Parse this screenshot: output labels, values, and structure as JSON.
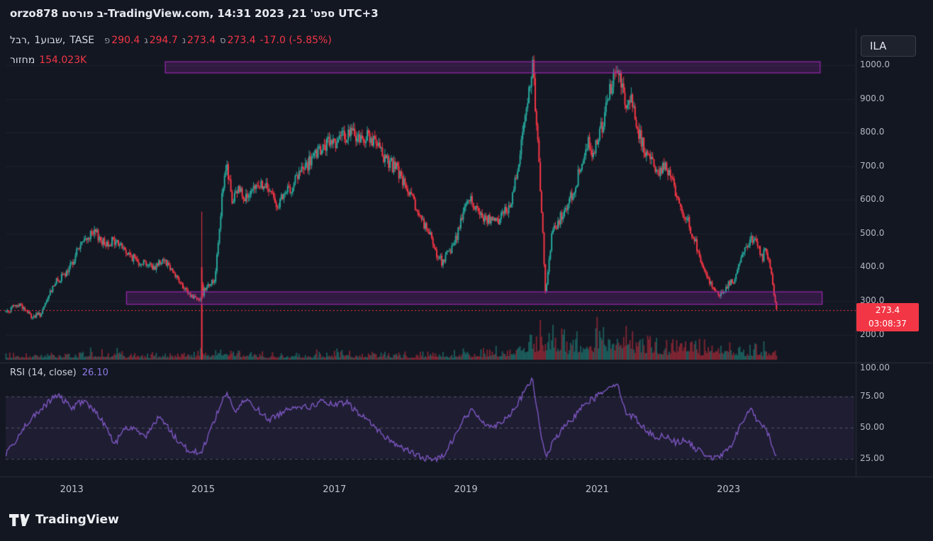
{
  "header": {
    "segments": [
      "orzo878",
      "פורסם",
      "ב-TradingView.com,",
      "14:31",
      "2023",
      ",21",
      "ספט'",
      "UTC+3"
    ]
  },
  "legend": {
    "symbol_segments": [
      "רבל,",
      "1שבוע,",
      "TASE"
    ],
    "ohlc": [
      {
        "label": "פ",
        "value": "290.4"
      },
      {
        "label": "ג",
        "value": "294.7"
      },
      {
        "label": "נ",
        "value": "273.4"
      },
      {
        "label": "ס",
        "value": "273.4"
      }
    ],
    "change": "-17.0 (-5.85%)",
    "volume_label": "מחזור",
    "volume_value": "154.023K"
  },
  "symbol_badge": "ILA",
  "price_label": {
    "value": "273.4",
    "countdown": "03:08:37"
  },
  "price_axis": {
    "ticks": [
      {
        "label": "1000.0",
        "price": 1000
      },
      {
        "label": "900.0",
        "price": 900
      },
      {
        "label": "800.0",
        "price": 800
      },
      {
        "label": "700.0",
        "price": 700
      },
      {
        "label": "600.0",
        "price": 600
      },
      {
        "label": "500.0",
        "price": 500
      },
      {
        "label": "400.0",
        "price": 400
      },
      {
        "label": "300.0",
        "price": 300
      },
      {
        "label": "200.0",
        "price": 200
      },
      {
        "label": "100.00",
        "price": 100
      }
    ]
  },
  "rsi_pane": {
    "title": "RSI (14, close)",
    "value": "26.10",
    "ticks": [
      {
        "label": "75.00",
        "value": 75
      },
      {
        "label": "50.00",
        "value": 50
      },
      {
        "label": "25.00",
        "value": 25
      }
    ],
    "band": [
      25,
      75
    ],
    "levels": [
      75,
      50,
      25
    ]
  },
  "time_axis": {
    "labels": [
      {
        "text": "2013",
        "t": 2013
      },
      {
        "text": "2015",
        "t": 2015
      },
      {
        "text": "2017",
        "t": 2017
      },
      {
        "text": "2019",
        "t": 2019
      },
      {
        "text": "2021",
        "t": 2021
      },
      {
        "text": "2023",
        "t": 2023
      }
    ]
  },
  "footer": {
    "brand": "TradingView"
  },
  "colors": {
    "background": "#131722",
    "up": "#26a69a",
    "down": "#f23645",
    "volume_up": "rgba(38,166,154,0.45)",
    "volume_down": "rgba(242,54,69,0.45)",
    "box_border": "#9c27b0",
    "box_fill": "rgba(156,39,176,0.22)",
    "rsi_line": "#7e57c2",
    "rsi_band_fill": "rgba(126,87,194,0.10)",
    "rsi_level_line": "rgba(209,212,220,0.30)",
    "current_price_line": "#f23645",
    "separator": "#2a2e39",
    "grid": "rgba(255,255,255,0.045)"
  },
  "chart_data": {
    "type": "candlestick",
    "symbol": "רבל",
    "exchange": "TASE",
    "interval": "1שבוע",
    "ticker_badge": "ILA",
    "current": {
      "open": 290.4,
      "high": 294.7,
      "low": 273.4,
      "close": 273.4,
      "change": -17.0,
      "change_pct": -5.85,
      "volume": "154.023K",
      "countdown": "03:08:37"
    },
    "current_price_line": 273.4,
    "axes": {
      "time_domain": [
        2012.0,
        2024.92
      ],
      "price_domain": [
        125.5,
        1109.3
      ],
      "rsi_domain": [
        13.6,
        100.6
      ]
    },
    "boxes": [
      {
        "t": [
          2014.43,
          2024.4
        ],
        "price": [
          977,
          1010
        ]
      },
      {
        "t": [
          2013.84,
          2024.43
        ],
        "price": [
          290,
          327
        ]
      }
    ],
    "special_candle": {
      "t": 2014.99,
      "open": 400,
      "high": 565,
      "low": 135,
      "close": 305,
      "volume": 78
    },
    "price_keyframes": [
      [
        2012.0,
        268
      ],
      [
        2012.1,
        280
      ],
      [
        2012.22,
        290
      ],
      [
        2012.4,
        252
      ],
      [
        2012.55,
        262
      ],
      [
        2012.73,
        350
      ],
      [
        2012.95,
        385
      ],
      [
        2013.1,
        455
      ],
      [
        2013.25,
        490
      ],
      [
        2013.38,
        500
      ],
      [
        2013.5,
        470
      ],
      [
        2013.62,
        478
      ],
      [
        2013.75,
        468
      ],
      [
        2013.85,
        440
      ],
      [
        2014.0,
        420
      ],
      [
        2014.13,
        415
      ],
      [
        2014.25,
        398
      ],
      [
        2014.4,
        428
      ],
      [
        2014.56,
        386
      ],
      [
        2014.72,
        332
      ],
      [
        2014.85,
        312
      ],
      [
        2014.97,
        310
      ],
      [
        2015.06,
        348
      ],
      [
        2015.18,
        360
      ],
      [
        2015.3,
        620
      ],
      [
        2015.37,
        700
      ],
      [
        2015.45,
        590
      ],
      [
        2015.55,
        635
      ],
      [
        2015.7,
        600
      ],
      [
        2015.85,
        650
      ],
      [
        2016.0,
        630
      ],
      [
        2016.15,
        585
      ],
      [
        2016.33,
        635
      ],
      [
        2016.5,
        685
      ],
      [
        2016.66,
        718
      ],
      [
        2016.82,
        750
      ],
      [
        2016.94,
        772
      ],
      [
        2017.1,
        780
      ],
      [
        2017.25,
        800
      ],
      [
        2017.4,
        780
      ],
      [
        2017.52,
        792
      ],
      [
        2017.68,
        750
      ],
      [
        2017.84,
        710
      ],
      [
        2017.96,
        688
      ],
      [
        2018.12,
        625
      ],
      [
        2018.28,
        562
      ],
      [
        2018.45,
        498
      ],
      [
        2018.56,
        438
      ],
      [
        2018.65,
        415
      ],
      [
        2018.77,
        448
      ],
      [
        2018.88,
        500
      ],
      [
        2018.98,
        580
      ],
      [
        2019.08,
        600
      ],
      [
        2019.2,
        562
      ],
      [
        2019.35,
        542
      ],
      [
        2019.46,
        530
      ],
      [
        2019.57,
        562
      ],
      [
        2019.68,
        582
      ],
      [
        2019.79,
        690
      ],
      [
        2019.9,
        840
      ],
      [
        2019.99,
        965
      ],
      [
        2020.02,
        1000
      ],
      [
        2020.09,
        815
      ],
      [
        2020.16,
        565
      ],
      [
        2020.22,
        312
      ],
      [
        2020.32,
        500
      ],
      [
        2020.43,
        540
      ],
      [
        2020.54,
        582
      ],
      [
        2020.65,
        625
      ],
      [
        2020.76,
        708
      ],
      [
        2020.87,
        770
      ],
      [
        2020.93,
        740
      ],
      [
        2021.03,
        792
      ],
      [
        2021.13,
        855
      ],
      [
        2021.24,
        960
      ],
      [
        2021.3,
        1000
      ],
      [
        2021.38,
        940
      ],
      [
        2021.46,
        878
      ],
      [
        2021.52,
        908
      ],
      [
        2021.62,
        812
      ],
      [
        2021.73,
        750
      ],
      [
        2021.84,
        708
      ],
      [
        2021.95,
        688
      ],
      [
        2022.05,
        700
      ],
      [
        2022.16,
        645
      ],
      [
        2022.27,
        582
      ],
      [
        2022.38,
        540
      ],
      [
        2022.49,
        478
      ],
      [
        2022.6,
        415
      ],
      [
        2022.7,
        362
      ],
      [
        2022.81,
        330
      ],
      [
        2022.87,
        320
      ],
      [
        2022.97,
        342
      ],
      [
        2023.08,
        362
      ],
      [
        2023.18,
        415
      ],
      [
        2023.29,
        466
      ],
      [
        2023.35,
        492
      ],
      [
        2023.45,
        458
      ],
      [
        2023.51,
        425
      ],
      [
        2023.56,
        446
      ],
      [
        2023.62,
        415
      ],
      [
        2023.67,
        362
      ],
      [
        2023.71,
        308
      ],
      [
        2023.73,
        273.4
      ]
    ],
    "volume_keyframes": [
      [
        2012.0,
        7
      ],
      [
        2013.0,
        9
      ],
      [
        2013.6,
        11
      ],
      [
        2014.0,
        7
      ],
      [
        2014.8,
        9
      ],
      [
        2014.99,
        12
      ],
      [
        2015.1,
        12
      ],
      [
        2015.4,
        14
      ],
      [
        2016.0,
        8
      ],
      [
        2016.5,
        8
      ],
      [
        2017.0,
        10
      ],
      [
        2017.5,
        9
      ],
      [
        2018.0,
        8
      ],
      [
        2018.6,
        9
      ],
      [
        2019.0,
        10
      ],
      [
        2019.6,
        13
      ],
      [
        2019.9,
        26
      ],
      [
        2020.1,
        34
      ],
      [
        2020.25,
        40
      ],
      [
        2020.5,
        26
      ],
      [
        2020.8,
        28
      ],
      [
        2021.0,
        34
      ],
      [
        2021.3,
        42
      ],
      [
        2021.6,
        30
      ],
      [
        2021.9,
        24
      ],
      [
        2022.2,
        22
      ],
      [
        2022.5,
        18
      ],
      [
        2022.85,
        26
      ],
      [
        2023.1,
        18
      ],
      [
        2023.4,
        16
      ],
      [
        2023.73,
        18
      ]
    ],
    "rsi_keyframes": [
      [
        2012.0,
        28
      ],
      [
        2012.15,
        40
      ],
      [
        2012.3,
        52
      ],
      [
        2012.55,
        65
      ],
      [
        2012.7,
        73
      ],
      [
        2012.8,
        76
      ],
      [
        2013.0,
        66
      ],
      [
        2013.2,
        72
      ],
      [
        2013.4,
        60
      ],
      [
        2013.55,
        50
      ],
      [
        2013.65,
        35
      ],
      [
        2013.8,
        50
      ],
      [
        2014.0,
        48
      ],
      [
        2014.15,
        44
      ],
      [
        2014.35,
        60
      ],
      [
        2014.55,
        44
      ],
      [
        2014.75,
        33
      ],
      [
        2014.97,
        29
      ],
      [
        2015.1,
        46
      ],
      [
        2015.3,
        72
      ],
      [
        2015.37,
        78
      ],
      [
        2015.5,
        62
      ],
      [
        2015.65,
        73
      ],
      [
        2015.85,
        64
      ],
      [
        2016.0,
        56
      ],
      [
        2016.2,
        62
      ],
      [
        2016.4,
        68
      ],
      [
        2016.6,
        66
      ],
      [
        2016.8,
        71
      ],
      [
        2017.0,
        68
      ],
      [
        2017.2,
        70
      ],
      [
        2017.4,
        60
      ],
      [
        2017.55,
        55
      ],
      [
        2017.7,
        46
      ],
      [
        2017.9,
        38
      ],
      [
        2018.1,
        32
      ],
      [
        2018.3,
        27
      ],
      [
        2018.5,
        24
      ],
      [
        2018.65,
        27
      ],
      [
        2018.8,
        40
      ],
      [
        2018.95,
        55
      ],
      [
        2019.1,
        64
      ],
      [
        2019.25,
        56
      ],
      [
        2019.4,
        50
      ],
      [
        2019.55,
        55
      ],
      [
        2019.7,
        62
      ],
      [
        2019.85,
        74
      ],
      [
        2019.95,
        85
      ],
      [
        2020.02,
        88
      ],
      [
        2020.15,
        45
      ],
      [
        2020.22,
        26
      ],
      [
        2020.35,
        40
      ],
      [
        2020.5,
        50
      ],
      [
        2020.65,
        58
      ],
      [
        2020.8,
        70
      ],
      [
        2020.95,
        73
      ],
      [
        2021.1,
        80
      ],
      [
        2021.25,
        85
      ],
      [
        2021.3,
        86
      ],
      [
        2021.45,
        62
      ],
      [
        2021.6,
        57
      ],
      [
        2021.75,
        48
      ],
      [
        2021.9,
        42
      ],
      [
        2022.05,
        44
      ],
      [
        2022.2,
        38
      ],
      [
        2022.35,
        40
      ],
      [
        2022.5,
        33
      ],
      [
        2022.65,
        29
      ],
      [
        2022.8,
        25
      ],
      [
        2022.9,
        28
      ],
      [
        2023.0,
        32
      ],
      [
        2023.1,
        42
      ],
      [
        2023.25,
        58
      ],
      [
        2023.35,
        66
      ],
      [
        2023.45,
        54
      ],
      [
        2023.55,
        50
      ],
      [
        2023.62,
        44
      ],
      [
        2023.68,
        35
      ],
      [
        2023.73,
        26.1
      ]
    ]
  }
}
